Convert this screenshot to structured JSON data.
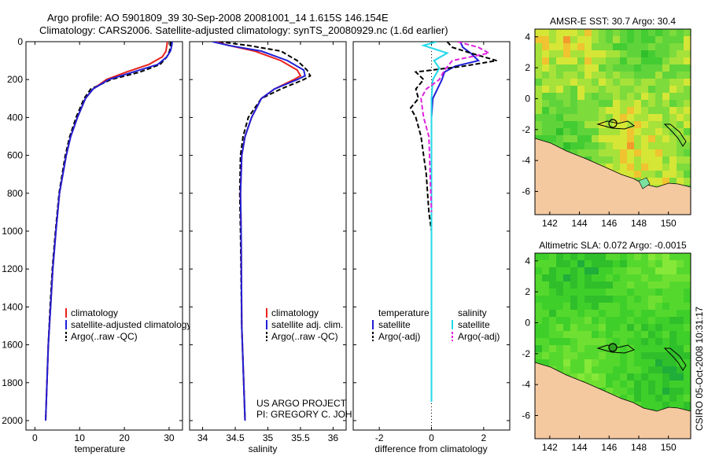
{
  "header": {
    "line1": "Argo profile: AO 5901809_39 30-Sep-2008 20081001_14 1.615S 146.154E",
    "line2": "Climatology: CARS2006. Satellite-adjusted climatology: synTS_20080929.nc (1.6d earlier)"
  },
  "side_stamp": "CSIRO 05-Oct-2008 10:31:17",
  "project": {
    "line1": "US ARGO PROJECT",
    "line2": "PI: GREGORY C. JOHNSON"
  },
  "colors": {
    "climatology": "#e8221c",
    "satellite": "#1f1fd6",
    "argo": "#000000",
    "salinity_sat": "#22d8e8",
    "salinity_argo": "#e020e0",
    "land": "#f5c9a0",
    "sea_mid": "#44cc33"
  },
  "chart_data": [
    {
      "type": "line",
      "id": "temperature",
      "xlabel": "temperature",
      "xlim": [
        -2,
        33
      ],
      "ylim": [
        0,
        2050
      ],
      "xticks": [
        0,
        10,
        20,
        30
      ],
      "yticks": [
        0,
        200,
        400,
        600,
        800,
        1000,
        1200,
        1400,
        1600,
        1800,
        2000
      ],
      "y_inverted": true,
      "legend": [
        "climatology",
        "satellite-adjusted climatology",
        "Argo(..raw -QC)"
      ],
      "series": [
        {
          "name": "climatology",
          "depth": [
            0,
            20,
            50,
            80,
            120,
            160,
            200,
            250,
            300,
            400,
            500,
            600,
            800,
            1000,
            1200,
            1400,
            1600,
            1800,
            2000
          ],
          "values": [
            29.6,
            29.5,
            29.3,
            28.5,
            25.5,
            20.5,
            16,
            13,
            11.3,
            9.5,
            8,
            7,
            5.5,
            4.7,
            4,
            3.5,
            3,
            2.7,
            2.4
          ]
        },
        {
          "name": "satellite-adjusted climatology",
          "depth": [
            0,
            20,
            50,
            80,
            120,
            160,
            200,
            250,
            300,
            400,
            500,
            600,
            800,
            1000,
            1200,
            1400,
            1600,
            1800,
            2000
          ],
          "values": [
            30.7,
            30.6,
            30.3,
            29.5,
            27.5,
            22,
            16.5,
            13,
            11.3,
            9.5,
            8,
            7,
            5.5,
            4.7,
            4,
            3.5,
            3,
            2.7,
            2.4
          ]
        },
        {
          "name": "Argo(..raw -QC)",
          "depth": [
            0,
            20,
            50,
            80,
            120,
            160,
            200,
            250,
            300,
            400,
            500,
            600,
            800,
            1000,
            1200,
            1400,
            1600,
            1800,
            2000
          ],
          "values": [
            30.4,
            30.3,
            30.1,
            29.5,
            28,
            23.5,
            17,
            12.5,
            11,
            9.2,
            7.8,
            6.8,
            5.4,
            4.6,
            3.9,
            3.4,
            3,
            2.7,
            2.4
          ]
        }
      ]
    },
    {
      "type": "line",
      "id": "salinity",
      "xlabel": "salinity",
      "xlim": [
        33.8,
        36.2
      ],
      "ylim": [
        0,
        2050
      ],
      "xticks": [
        34,
        34.5,
        35,
        35.5,
        36
      ],
      "y_inverted": true,
      "legend": [
        "climatology",
        "satellite adj. clim.",
        "Argo(..raw -QC)"
      ],
      "series": [
        {
          "name": "climatology",
          "depth": [
            0,
            20,
            50,
            100,
            150,
            180,
            200,
            250,
            300,
            400,
            500,
            600,
            800,
            1000,
            1500,
            2000
          ],
          "values": [
            34.2,
            34.4,
            34.8,
            35.2,
            35.45,
            35.5,
            35.4,
            35.1,
            34.9,
            34.75,
            34.65,
            34.6,
            34.58,
            34.59,
            34.6,
            34.65
          ]
        },
        {
          "name": "satellite adj. clim.",
          "depth": [
            0,
            20,
            50,
            100,
            150,
            180,
            200,
            250,
            300,
            400,
            500,
            600,
            800,
            1000,
            1500,
            2000
          ],
          "values": [
            34.15,
            34.4,
            34.9,
            35.3,
            35.55,
            35.57,
            35.45,
            35.1,
            34.9,
            34.75,
            34.65,
            34.6,
            34.58,
            34.59,
            34.6,
            34.65
          ]
        },
        {
          "name": "Argo(..raw -QC)",
          "depth": [
            0,
            20,
            50,
            100,
            150,
            180,
            200,
            250,
            300,
            400,
            500,
            600,
            800,
            1000,
            1500,
            2000
          ],
          "values": [
            34.25,
            34.7,
            35.2,
            35.45,
            35.6,
            35.65,
            35.55,
            35.2,
            34.9,
            34.7,
            34.62,
            34.58,
            34.57,
            34.58,
            34.6,
            34.65
          ]
        }
      ]
    },
    {
      "type": "line",
      "id": "difference",
      "xlabel": "difference from climatology",
      "xlim": [
        -3,
        3
      ],
      "ylim": [
        0,
        2050
      ],
      "xticks": [
        -2,
        0,
        2
      ],
      "y_inverted": true,
      "legend_headers": [
        "temperature",
        "salinity"
      ],
      "legend": [
        "satellite",
        "Argo(-adj)",
        "satellite",
        "Argo(-adj)"
      ],
      "series": [
        {
          "name": "temperature satellite",
          "depth": [
            0,
            30,
            60,
            100,
            130,
            160,
            200,
            300,
            400,
            600,
            1000,
            1500,
            1900
          ],
          "values": [
            1.1,
            1.2,
            1.5,
            1.8,
            0.9,
            0.5,
            0.4,
            0.05,
            0,
            0,
            0,
            0,
            0
          ]
        },
        {
          "name": "temperature Argo(-adj)",
          "depth": [
            0,
            30,
            60,
            100,
            130,
            160,
            200,
            250,
            300,
            350,
            400,
            450,
            500,
            600,
            700,
            800,
            900,
            1000
          ],
          "values": [
            0.6,
            0.8,
            1.5,
            2.5,
            1.2,
            -0.6,
            -0.3,
            -0.6,
            -0.5,
            -0.8,
            -0.6,
            -0.5,
            -0.4,
            -0.3,
            -0.2,
            -0.15,
            -0.1,
            0
          ]
        },
        {
          "name": "salinity satellite",
          "depth": [
            0,
            20,
            60,
            100,
            140,
            200,
            300,
            500,
            1000,
            1900
          ],
          "values": [
            0.2,
            -0.3,
            0.6,
            0.1,
            0.3,
            0.05,
            0,
            0,
            0,
            0
          ]
        },
        {
          "name": "salinity Argo(-adj)",
          "depth": [
            0,
            30,
            60,
            100,
            150,
            200,
            250,
            300,
            400,
            500,
            700,
            900
          ],
          "values": [
            1.0,
            1.8,
            2.2,
            0.8,
            0.5,
            0.3,
            -0.2,
            -0.4,
            -0.3,
            -0.1,
            -0.05,
            0
          ]
        }
      ]
    },
    {
      "type": "heatmap",
      "id": "sst_map",
      "title": "AMSR-E SST: 30.7 Argo: 30.4",
      "xlim": [
        141,
        151.5
      ],
      "ylim": [
        -7.5,
        4.5
      ],
      "xticks": [
        142,
        144,
        146,
        148,
        150
      ],
      "yticks": [
        -6,
        -4,
        -2,
        0,
        2,
        4
      ],
      "argo_position": [
        146.154,
        -1.615
      ]
    },
    {
      "type": "heatmap",
      "id": "sla_map",
      "title": "Altimetric SLA: 0.072 Argo: -0.0015",
      "xlim": [
        141,
        151.5
      ],
      "ylim": [
        -7.5,
        4.5
      ],
      "xticks": [
        142,
        144,
        146,
        148,
        150
      ],
      "yticks": [
        -6,
        -4,
        -2,
        0,
        2,
        4
      ],
      "argo_position": [
        146.154,
        -1.615
      ]
    }
  ]
}
